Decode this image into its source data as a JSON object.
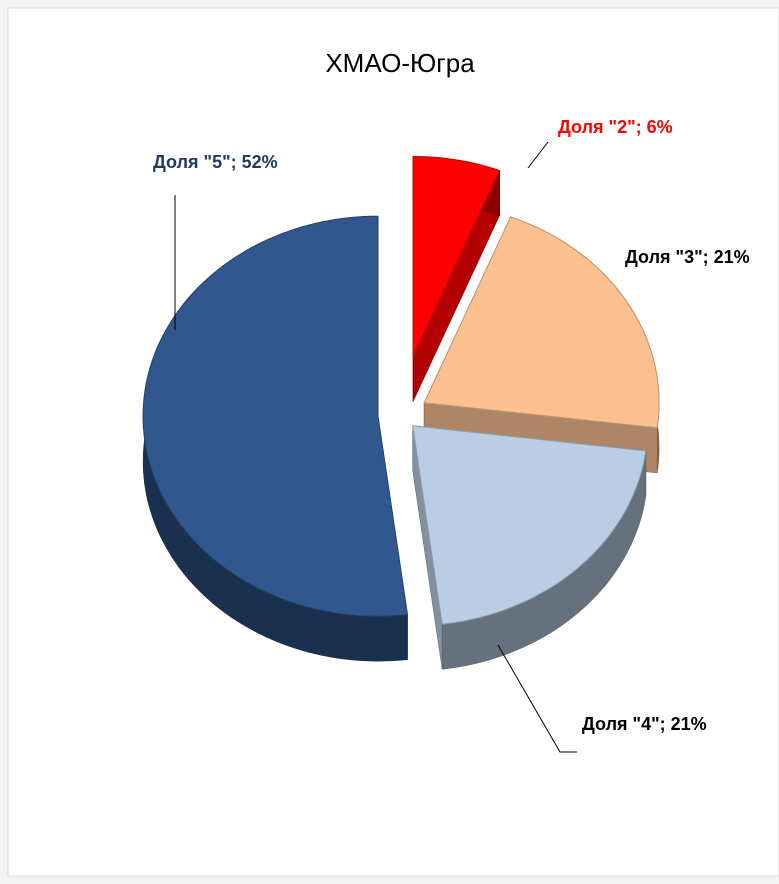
{
  "chart_data": {
    "type": "pie",
    "title": "ХМАО-Югра",
    "categories": [
      "Доля \"2\"",
      "Доля \"3\"",
      "Доля \"4\"",
      "Доля \"5\""
    ],
    "values": [
      6,
      21,
      21,
      52
    ],
    "value_labels": [
      "Доля \"2\"; 6%",
      "Доля \"3\"; 21%",
      "Доля \"4\"; 21%",
      "Доля \"5\"; 52%"
    ],
    "colors": [
      "#ff0000",
      "#fac090",
      "#b9cde5",
      "#30588f"
    ]
  }
}
